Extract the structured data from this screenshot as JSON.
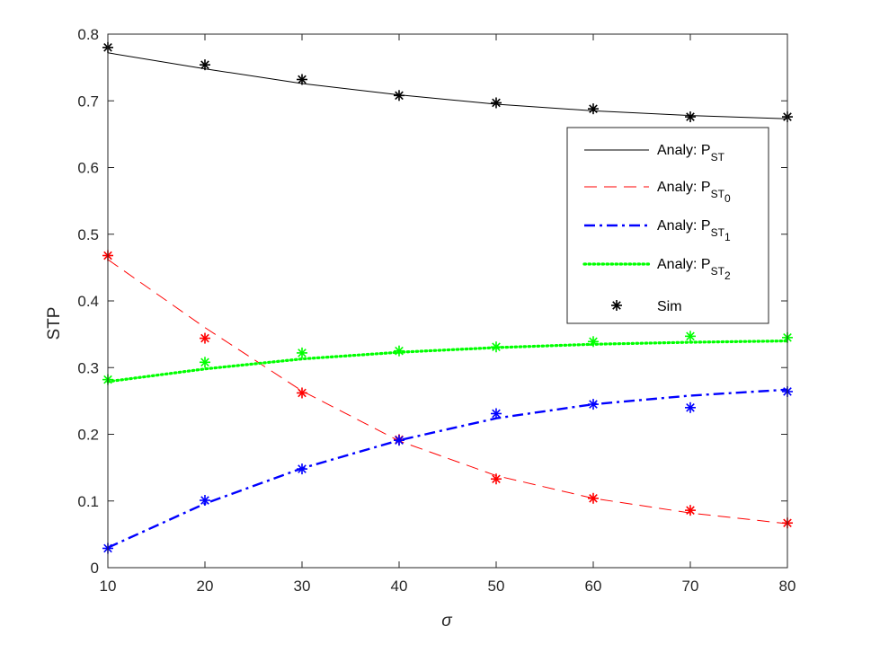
{
  "chart_data": {
    "type": "line",
    "xlabel": "σ",
    "ylabel": "STP",
    "xlim": [
      10,
      80
    ],
    "ylim": [
      0,
      0.8
    ],
    "xticks": [
      10,
      20,
      30,
      40,
      50,
      60,
      70,
      80
    ],
    "yticks": [
      "0",
      "0.1",
      "0.2",
      "0.3",
      "0.4",
      "0.5",
      "0.6",
      "0.7",
      "0.8"
    ],
    "grid": false,
    "legend_position": "right",
    "x": [
      10,
      20,
      30,
      40,
      50,
      60,
      70,
      80
    ],
    "series": [
      {
        "legend_prefix": "Analy: P",
        "legend_sub": "ST",
        "legend_subsub": "",
        "color": "#000000",
        "dash": "solid",
        "analytic": [
          0.772,
          0.748,
          0.726,
          0.709,
          0.695,
          0.685,
          0.678,
          0.673
        ],
        "sim": [
          0.78,
          0.754,
          0.732,
          0.708,
          0.697,
          0.688,
          0.676,
          0.676
        ]
      },
      {
        "legend_prefix": "Analy: P",
        "legend_sub": "ST",
        "legend_subsub": "0",
        "color": "#ff0000",
        "dash": "dashed",
        "analytic": [
          0.462,
          0.36,
          0.265,
          0.19,
          0.138,
          0.104,
          0.082,
          0.066
        ],
        "sim": [
          0.468,
          0.344,
          0.262,
          0.192,
          0.133,
          0.104,
          0.086,
          0.067
        ]
      },
      {
        "legend_prefix": "Analy: P",
        "legend_sub": "ST",
        "legend_subsub": "1",
        "color": "#0000ff",
        "dash": "dashdot",
        "analytic": [
          0.03,
          0.096,
          0.149,
          0.191,
          0.224,
          0.245,
          0.258,
          0.267
        ],
        "sim": [
          0.029,
          0.101,
          0.148,
          0.191,
          0.231,
          0.245,
          0.24,
          0.264
        ]
      },
      {
        "legend_prefix": "Analy: P",
        "legend_sub": "ST",
        "legend_subsub": "2",
        "color": "#00ff00",
        "dash": "dotted",
        "analytic": [
          0.279,
          0.298,
          0.313,
          0.323,
          0.33,
          0.335,
          0.338,
          0.34
        ],
        "sim": [
          0.282,
          0.308,
          0.322,
          0.325,
          0.331,
          0.339,
          0.347,
          0.345
        ]
      }
    ],
    "sim_legend": "Sim"
  }
}
